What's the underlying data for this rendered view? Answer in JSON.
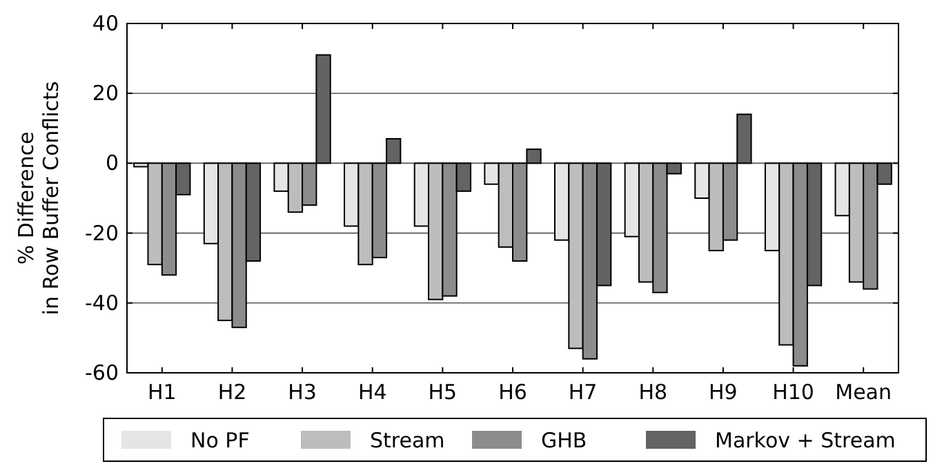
{
  "chart_data": {
    "type": "bar",
    "ylabel": "% Difference\nin Row Buffer Conflicts",
    "categories": [
      "H1",
      "H2",
      "H3",
      "H4",
      "H5",
      "H6",
      "H7",
      "H8",
      "H9",
      "H10",
      "Mean"
    ],
    "series": [
      {
        "name": "No PF",
        "color": "#e5e5e5",
        "values": [
          -1,
          -23,
          -8,
          -18,
          -18,
          -6,
          -22,
          -21,
          -10,
          -25,
          -15
        ]
      },
      {
        "name": "Stream",
        "color": "#bdbdbd",
        "values": [
          -29,
          -45,
          -14,
          -29,
          -39,
          -24,
          -53,
          -34,
          -25,
          -52,
          -34
        ]
      },
      {
        "name": "GHB",
        "color": "#8c8c8c",
        "values": [
          -32,
          -47,
          -12,
          -27,
          -38,
          -28,
          -56,
          -37,
          -22,
          -58,
          -36
        ]
      },
      {
        "name": "Markov + Stream",
        "color": "#636363",
        "values": [
          -9,
          -28,
          31,
          7,
          -8,
          4,
          -35,
          -3,
          14,
          -35,
          -6
        ]
      }
    ],
    "ylim": [
      -60,
      40
    ],
    "yticks": [
      -60,
      -40,
      -20,
      0,
      20,
      40
    ],
    "grid": "y",
    "legend": "bottom"
  }
}
